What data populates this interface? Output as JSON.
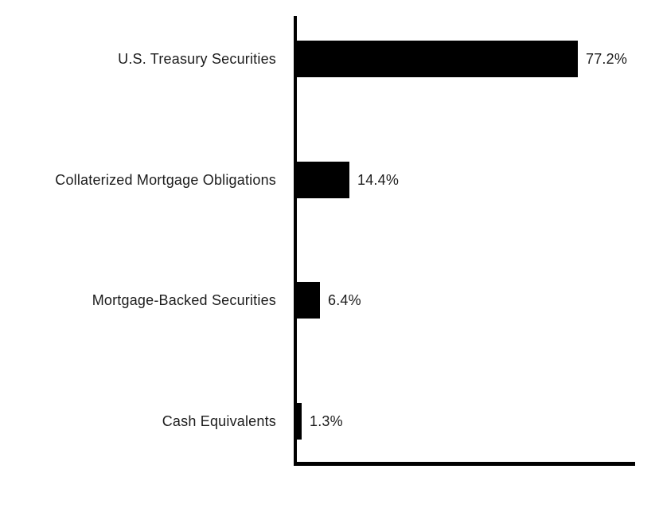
{
  "chart_data": {
    "type": "bar",
    "orientation": "horizontal",
    "title": "",
    "xlabel": "",
    "ylabel": "",
    "categories": [
      "U.S. Treasury Securities",
      "Collaterized Mortgage Obligations",
      "Mortgage-Backed Securities",
      "Cash Equivalents"
    ],
    "values": [
      77.2,
      14.4,
      6.4,
      1.3
    ],
    "value_labels": [
      "77.2%",
      "14.4%",
      "6.4%",
      "1.3%"
    ],
    "unit": "percent",
    "xlim": [
      0,
      94
    ],
    "grid": false,
    "legend": false,
    "bar_color": "#000000",
    "axis_color": "#000000",
    "text_color": "#1c1c1c",
    "background_color": "#ffffff"
  }
}
